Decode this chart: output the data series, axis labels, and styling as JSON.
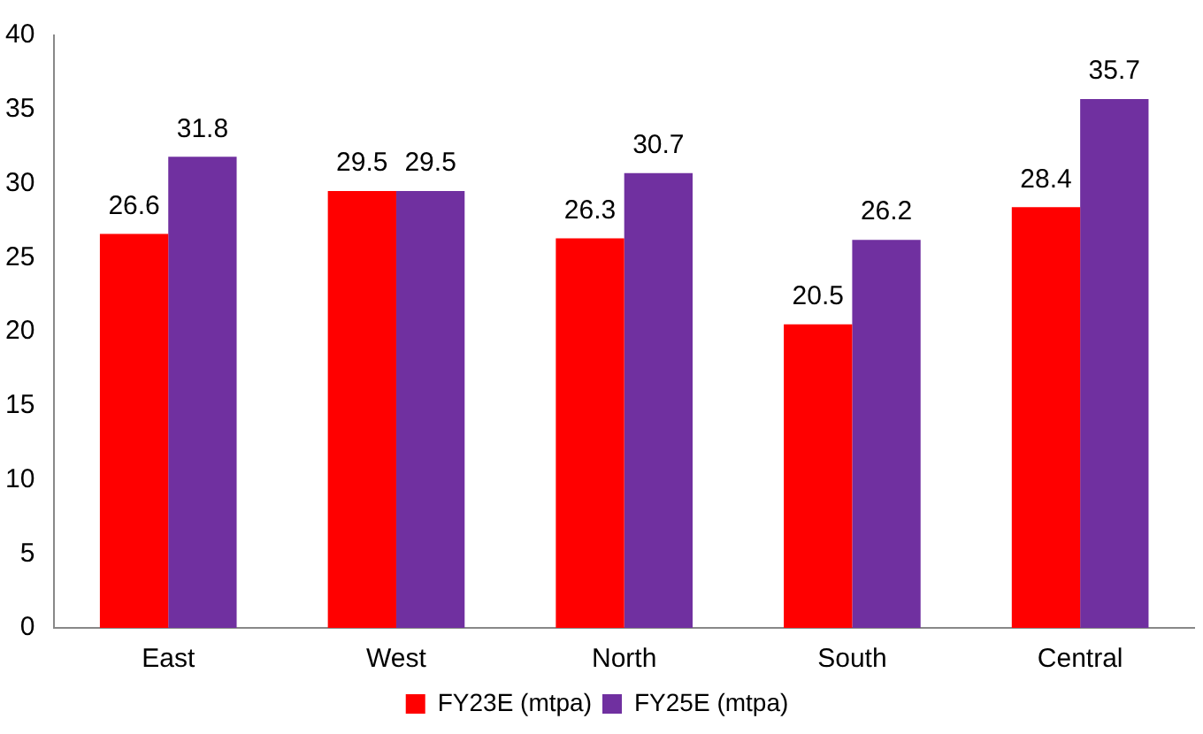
{
  "chart_data": {
    "type": "bar",
    "categories": [
      "East",
      "West",
      "North",
      "South",
      "Central"
    ],
    "series": [
      {
        "name": "FY23E (mtpa)",
        "color": "#ff0000",
        "values": [
          26.6,
          29.5,
          26.3,
          20.5,
          28.4
        ]
      },
      {
        "name": "FY25E (mtpa)",
        "color": "#7030a0",
        "values": [
          31.8,
          29.5,
          30.7,
          26.2,
          35.7
        ]
      }
    ],
    "ylim": [
      0,
      40
    ],
    "yticks": [
      0,
      5,
      10,
      15,
      20,
      25,
      30,
      35,
      40
    ],
    "grid": false,
    "legend": "bottom",
    "data_labels": true
  }
}
